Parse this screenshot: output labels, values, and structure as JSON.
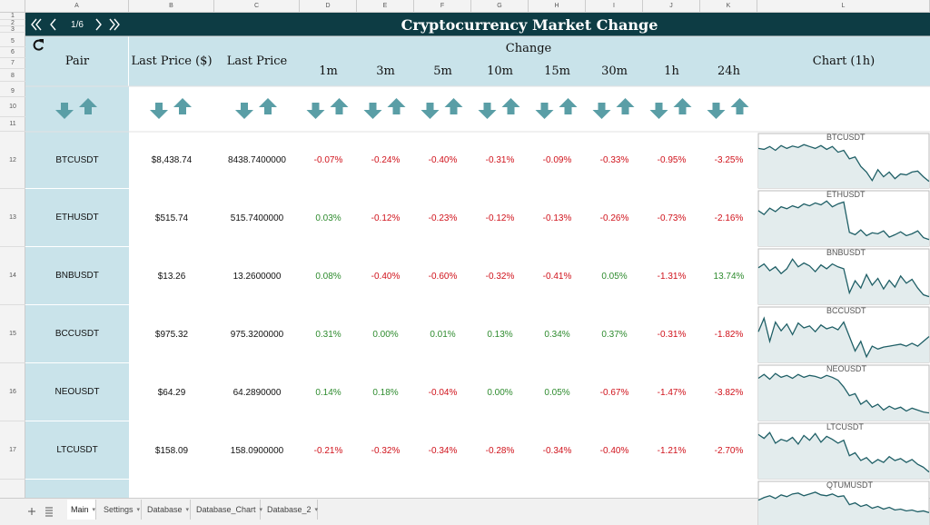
{
  "column_headers": [
    "A",
    "B",
    "C",
    "D",
    "E",
    "F",
    "G",
    "H",
    "I",
    "J",
    "K",
    "L"
  ],
  "row_numbers": [
    "1",
    "2",
    "3",
    "5",
    "6",
    "7",
    "8",
    "9",
    "10",
    "11",
    "12",
    "13",
    "14",
    "15",
    "16",
    "17"
  ],
  "nav": {
    "page": "1/6"
  },
  "title": "Cryptocurrency Market Change",
  "headers": {
    "pair": "Pair",
    "last_price_usd": "Last Price ($)",
    "last_price": "Last Price",
    "change": "Change",
    "intervals": [
      "1m",
      "3m",
      "5m",
      "10m",
      "15m",
      "30m",
      "1h",
      "24h"
    ],
    "chart": "Chart (1h)"
  },
  "rows": [
    {
      "pair": "BTCUSDT",
      "last_price_usd": "$8,438.74",
      "last_price": "8438.7400000",
      "changes": [
        "-0.07%",
        "-0.24%",
        "-0.40%",
        "-0.31%",
        "-0.09%",
        "-0.33%",
        "-0.95%",
        "-3.25%"
      ],
      "chart": {
        "label": "BTCUSDT",
        "values": [
          80,
          78,
          84,
          76,
          86,
          80,
          85,
          82,
          88,
          84,
          80,
          86,
          78,
          84,
          72,
          76,
          58,
          62,
          42,
          30,
          12,
          35,
          20,
          30,
          16,
          26,
          24,
          30,
          32,
          20,
          10
        ]
      }
    },
    {
      "pair": "ETHUSDT",
      "last_price_usd": "$515.74",
      "last_price": "515.7400000",
      "changes": [
        "0.03%",
        "-0.12%",
        "-0.23%",
        "-0.12%",
        "-0.13%",
        "-0.26%",
        "-0.73%",
        "-2.16%"
      ],
      "chart": {
        "label": "ETHUSDT",
        "values": [
          70,
          62,
          75,
          68,
          78,
          74,
          80,
          76,
          84,
          80,
          86,
          82,
          90,
          78,
          84,
          88,
          25,
          20,
          30,
          18,
          24,
          22,
          28,
          15,
          20,
          26,
          18,
          22,
          28,
          14,
          10
        ]
      }
    },
    {
      "pair": "BNBUSDT",
      "last_price_usd": "$13.26",
      "last_price": "13.2600000",
      "changes": [
        "0.08%",
        "-0.40%",
        "-0.60%",
        "-0.32%",
        "-0.41%",
        "0.05%",
        "-1.31%",
        "13.74%"
      ],
      "chart": {
        "label": "BNBUSDT",
        "values": [
          72,
          80,
          66,
          74,
          60,
          70,
          90,
          74,
          82,
          76,
          64,
          78,
          70,
          80,
          74,
          70,
          20,
          45,
          30,
          58,
          36,
          50,
          28,
          46,
          32,
          55,
          40,
          48,
          30,
          16,
          12
        ]
      }
    },
    {
      "pair": "BCCUSDT",
      "last_price_usd": "$975.32",
      "last_price": "975.3200000",
      "changes": [
        "0.31%",
        "0.00%",
        "0.01%",
        "0.13%",
        "0.34%",
        "0.37%",
        "-0.31%",
        "-1.82%"
      ],
      "chart": {
        "label": "BCCUSDT",
        "values": [
          60,
          88,
          40,
          80,
          62,
          76,
          54,
          78,
          68,
          72,
          60,
          74,
          66,
          70,
          64,
          80,
          50,
          20,
          40,
          8,
          30,
          24,
          28,
          30,
          32,
          34,
          30,
          36,
          30,
          40,
          50
        ]
      }
    },
    {
      "pair": "NEOUSDT",
      "last_price_usd": "$64.29",
      "last_price": "64.2890000",
      "changes": [
        "0.14%",
        "0.18%",
        "-0.04%",
        "0.00%",
        "0.05%",
        "-0.67%",
        "-1.47%",
        "-3.82%"
      ],
      "chart": {
        "label": "NEOUSDT",
        "values": [
          84,
          92,
          82,
          94,
          86,
          90,
          84,
          92,
          86,
          90,
          88,
          84,
          90,
          86,
          80,
          66,
          48,
          52,
          30,
          38,
          24,
          30,
          18,
          26,
          20,
          24,
          16,
          22,
          18,
          14,
          12
        ]
      }
    },
    {
      "pair": "LTCUSDT",
      "last_price_usd": "$158.09",
      "last_price": "158.0900000",
      "changes": [
        "-0.21%",
        "-0.32%",
        "-0.34%",
        "-0.28%",
        "-0.34%",
        "-0.40%",
        "-1.21%",
        "-2.70%"
      ],
      "chart": {
        "label": "LTCUSDT",
        "values": [
          88,
          80,
          92,
          70,
          78,
          74,
          82,
          68,
          86,
          76,
          90,
          72,
          84,
          78,
          70,
          76,
          44,
          50,
          34,
          40,
          28,
          36,
          30,
          42,
          34,
          38,
          30,
          36,
          26,
          20,
          10
        ]
      }
    }
  ],
  "partial_chart": {
    "label": "QTUMUSDT",
    "values": [
      70,
      76,
      80,
      74,
      82,
      78,
      84,
      86,
      80,
      84,
      88,
      82,
      80,
      84,
      78,
      80,
      60,
      64,
      56,
      60,
      52,
      56,
      50,
      54,
      48,
      50,
      46,
      48,
      44,
      46,
      42
    ]
  },
  "tabs": [
    "Main",
    "Settings",
    "Database",
    "Database_Chart",
    "Database_2"
  ]
}
